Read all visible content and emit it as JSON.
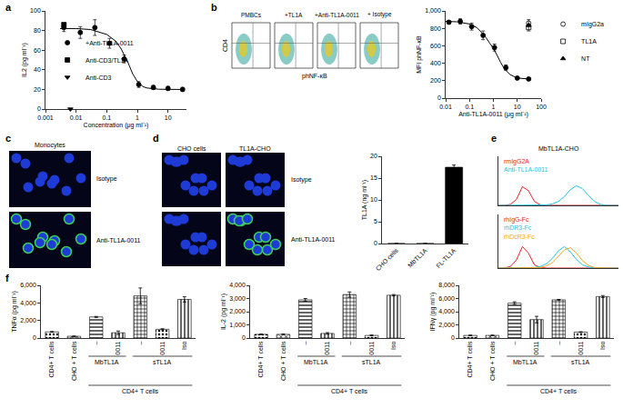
{
  "panel_letters": [
    "a",
    "b",
    "c",
    "d",
    "e",
    "f"
  ],
  "images": {
    "flow": {
      "x_label": "phNF-κB",
      "y_label": "CD4",
      "panels": [
        "PMBCs",
        "+TL1A",
        "+Anti-TL1A-0011",
        "+ Isotype"
      ]
    },
    "monocytes": {
      "title": "Monocytes",
      "rows": [
        "Isotype",
        "Anti-TL1A-0011"
      ]
    },
    "cho": {
      "columns": [
        "CHO cells",
        "TL1A-CHO"
      ],
      "rows": [
        "Isotype",
        "Anti-TL1A-0011"
      ]
    }
  },
  "chart_data": [
    {
      "type": "scatter",
      "log": "x",
      "x_label": "Concentration (μg ml⁻¹)",
      "y_label": "IL2 (pg ml⁻¹)",
      "xlim": [
        0.001,
        40
      ],
      "xticks": [
        0.001,
        0.01,
        0.1,
        1,
        10
      ],
      "ylim": [
        0,
        100
      ],
      "yticks": [
        0,
        20,
        40,
        60,
        80,
        100
      ],
      "legend": "center left",
      "series": [
        {
          "name": "+Anti-TL1A-0011",
          "marker": "circle",
          "color": "#000000",
          "x": [
            0.004,
            0.0137,
            0.041,
            0.123,
            0.37,
            1.11,
            3.33,
            10,
            30
          ],
          "values": [
            83,
            78,
            83,
            67,
            51,
            25,
            22,
            21,
            20
          ],
          "error": [
            4,
            6,
            8,
            5,
            4,
            3,
            2,
            2,
            2
          ]
        },
        {
          "name": "Anti-CD3/TL1A",
          "marker": "square",
          "color": "#000000",
          "x": [
            0.004
          ],
          "values": [
            86
          ]
        },
        {
          "name": "Anti-CD3",
          "marker": "triangle-down",
          "color": "#000000",
          "x": [
            0.0065
          ],
          "values": [
            0
          ]
        },
        {
          "type": "line",
          "color": "#000000",
          "x": [
            0.003,
            0.01,
            0.03,
            0.1,
            0.2,
            0.3,
            0.5,
            0.7,
            1,
            1.5,
            2,
            3,
            5,
            10,
            30
          ],
          "values": [
            82,
            82,
            81,
            76,
            69,
            61,
            47,
            36,
            28,
            23,
            21.5,
            20.7,
            20.2,
            20,
            20
          ]
        }
      ]
    },
    {
      "type": "scatter",
      "log": "x",
      "x_label": "Anti-TL1A-0011 (μg ml⁻¹)",
      "y_label": "MFI phNF-κB",
      "xlim": [
        0.01,
        100
      ],
      "xticks": [
        0.01,
        0.1,
        1,
        10,
        100
      ],
      "ylim": [
        0,
        1000
      ],
      "yticks": [
        0,
        200,
        400,
        600,
        800,
        {
          "value": 1000,
          "label": "1,000"
        }
      ],
      "legend": "right",
      "series": [
        {
          "marker": "circle",
          "color": "#000000",
          "x": [
            0.0137,
            0.041,
            0.123,
            0.37,
            1.11,
            3.33,
            10,
            30
          ],
          "values": [
            870,
            880,
            820,
            720,
            580,
            350,
            230,
            220
          ],
          "error": [
            15,
            30,
            40,
            50,
            40,
            30,
            15,
            15
          ]
        },
        {
          "type": "line",
          "color": "#000000",
          "x": [
            0.01,
            0.03,
            0.1,
            0.2,
            0.3,
            0.5,
            0.7,
            1,
            1.5,
            2,
            3,
            5,
            10,
            30
          ],
          "values": [
            880,
            875,
            850,
            810,
            760,
            690,
            630,
            570,
            480,
            410,
            330,
            270,
            230,
            220
          ]
        },
        {
          "name": "mIgG2a",
          "marker": "circle-open",
          "color": "#000000",
          "x": [
            30
          ],
          "values": [
            860
          ],
          "error": [
            40
          ]
        },
        {
          "name": "TL1A",
          "marker": "square-open",
          "color": "#000000",
          "x": [
            30
          ],
          "values": [
            810
          ],
          "error": [
            40
          ]
        },
        {
          "name": "NT",
          "marker": "triangle-up",
          "color": "#000000",
          "x": [
            30
          ],
          "values": [
            835
          ]
        }
      ]
    },
    {
      "type": "bar",
      "categories": [
        "CHO cells",
        "MbTL1A",
        "FL-TL1A"
      ],
      "values": [
        0,
        0,
        17.5
      ],
      "error": [
        0,
        0,
        0.5
      ],
      "color": "#000000",
      "y_label": "TL1A (ng ml⁻¹)",
      "ylim": [
        0,
        20
      ],
      "yticks": [
        0,
        5,
        10,
        15,
        20
      ]
    },
    {
      "type": "line",
      "title": "MbTL1A-CHO",
      "tick_labels": false,
      "legend": "upper left",
      "x": [
        0,
        5,
        10,
        15,
        20,
        25,
        30,
        35,
        40,
        45,
        50,
        55,
        60,
        65,
        70,
        75,
        80,
        85,
        90,
        95,
        100
      ],
      "xlim": [
        0,
        100
      ],
      "ylim": [
        0,
        100
      ],
      "series": [
        {
          "name": "rmIgG2A",
          "color": "#e8202a",
          "values": [
            0,
            0,
            2,
            12,
            38,
            30,
            8,
            1,
            0,
            0,
            0,
            0,
            0,
            0,
            0,
            0,
            0,
            0,
            0,
            0,
            0
          ]
        },
        {
          "name": "Anti-TL1A-0011",
          "color": "#22c3e6",
          "values": [
            0,
            0,
            0,
            0,
            0,
            0,
            0,
            0,
            1,
            3,
            8,
            18,
            32,
            40,
            34,
            20,
            8,
            2,
            0,
            0,
            0
          ]
        }
      ]
    },
    {
      "type": "line",
      "tick_labels": false,
      "legend": "upper left",
      "x": [
        0,
        5,
        10,
        15,
        20,
        25,
        30,
        35,
        40,
        45,
        50,
        55,
        60,
        65,
        70,
        75,
        80,
        85,
        90,
        95,
        100
      ],
      "xlim": [
        0,
        100
      ],
      "ylim": [
        0,
        100
      ],
      "series": [
        {
          "name": "rhIgG-Fc",
          "color": "#e8202a",
          "values": [
            0,
            0,
            3,
            15,
            40,
            28,
            6,
            1,
            0,
            0,
            0,
            0,
            0,
            0,
            0,
            0,
            0,
            0,
            0,
            0,
            0
          ]
        },
        {
          "name": "rhDR3-Fc",
          "color": "#22c3e6",
          "values": [
            0,
            0,
            0,
            0,
            0,
            0,
            1,
            3,
            8,
            18,
            32,
            40,
            30,
            16,
            6,
            2,
            0,
            0,
            0,
            0,
            0
          ]
        },
        {
          "name": "rhDcR3-Fc",
          "color": "#f5a623",
          "values": [
            0,
            0,
            0,
            0,
            0,
            0,
            0,
            1,
            4,
            10,
            22,
            34,
            38,
            28,
            14,
            5,
            1,
            0,
            0,
            0,
            0
          ]
        }
      ]
    },
    {
      "type": "bar",
      "categories": [
        "CD4+ T cells",
        "CHO + T cells",
        "–",
        "0011",
        "–",
        "0011",
        "Iso"
      ],
      "values": [
        700,
        200,
        2400,
        600,
        4800,
        1000,
        4400
      ],
      "error": [
        40,
        30,
        60,
        200,
        900,
        60,
        300
      ],
      "color": "#000000",
      "y_label": "TNFα (pg ml⁻¹)",
      "ylim": [
        0,
        6000
      ],
      "yticks": [
        0,
        {
          "value": 2000,
          "label": "2,000"
        },
        {
          "value": 4000,
          "label": "4,000"
        },
        {
          "value": 6000,
          "label": "6,000"
        }
      ],
      "annotations": [
        {
          "text": "MbTL1A",
          "x": [
            2,
            3
          ]
        },
        {
          "text": "sTL1A",
          "x": [
            4,
            6
          ]
        },
        {
          "text": "CD4+ T cells",
          "x": [
            2,
            6
          ]
        }
      ]
    },
    {
      "type": "bar",
      "categories": [
        "CD4+ T cells",
        "CHO + T cells",
        "–",
        "0011",
        "–",
        "0011",
        "Iso"
      ],
      "values": [
        280,
        280,
        2900,
        350,
        3300,
        200,
        3250
      ],
      "error": [
        20,
        20,
        100,
        60,
        200,
        30,
        50
      ],
      "color": "#000000",
      "y_label": "IL-2 (pg ml⁻¹)",
      "ylim": [
        0,
        4000
      ],
      "yticks": [
        0,
        {
          "value": 1000,
          "label": "1,000"
        },
        {
          "value": 2000,
          "label": "2,000"
        },
        {
          "value": 3000,
          "label": "3,000"
        },
        {
          "value": 4000,
          "label": "4,000"
        }
      ],
      "annotations": [
        {
          "text": "MbTL1A",
          "x": [
            2,
            3
          ]
        },
        {
          "text": "sTL1A",
          "x": [
            4,
            6
          ]
        },
        {
          "text": "CD4+ T cells",
          "x": [
            2,
            6
          ]
        }
      ]
    },
    {
      "type": "bar",
      "categories": [
        "CD4+ T cells",
        "CHO + T cells",
        "–",
        "0011",
        "–",
        "0011",
        "Iso"
      ],
      "values": [
        400,
        400,
        5300,
        2800,
        5800,
        900,
        6300
      ],
      "error": [
        40,
        40,
        200,
        500,
        60,
        60,
        150
      ],
      "color": "#000000",
      "y_label": "IFNγ (pg ml⁻¹)",
      "ylim": [
        0,
        8000
      ],
      "yticks": [
        0,
        {
          "value": 2000,
          "label": "2,000"
        },
        {
          "value": 4000,
          "label": "4,000"
        },
        {
          "value": 6000,
          "label": "6,000"
        },
        {
          "value": 8000,
          "label": "8,000"
        }
      ],
      "annotations": [
        {
          "text": "MbTL1A",
          "x": [
            2,
            3
          ]
        },
        {
          "text": "sTL1A",
          "x": [
            4,
            6
          ]
        },
        {
          "text": "CD4+ T cells",
          "x": [
            2,
            6
          ]
        }
      ]
    }
  ]
}
